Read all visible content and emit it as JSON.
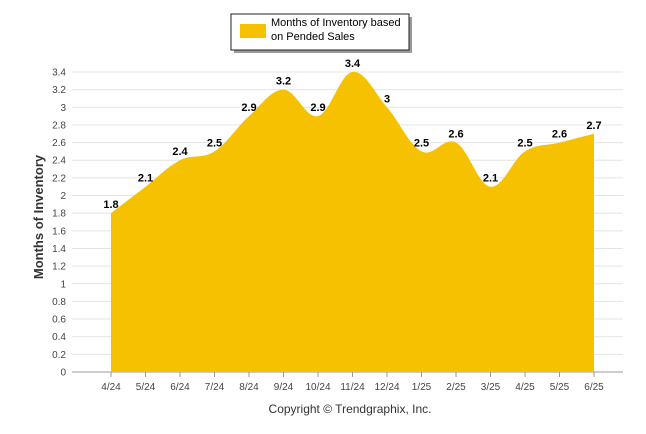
{
  "chart_data": {
    "type": "area",
    "categories": [
      "4/24",
      "5/24",
      "6/24",
      "7/24",
      "8/24",
      "9/24",
      "10/24",
      "11/24",
      "12/24",
      "1/25",
      "2/25",
      "3/25",
      "4/25",
      "5/25",
      "6/25"
    ],
    "series": [
      {
        "name": "Months of Inventory based on Pended Sales",
        "values": [
          1.8,
          2.1,
          2.4,
          2.5,
          2.9,
          3.2,
          2.9,
          3.4,
          3.0,
          2.5,
          2.6,
          2.1,
          2.5,
          2.6,
          2.7
        ],
        "value_labels": [
          "1.8",
          "2.1",
          "2.4",
          "2.5",
          "2.9",
          "3.2",
          "2.9",
          "3.4",
          "3",
          "2.5",
          "2.6",
          "2.1",
          "2.5",
          "2.6",
          "2.7"
        ],
        "color": "#F6C100"
      }
    ],
    "ylabel": "Months of Inventory",
    "ylim": [
      0,
      3.4
    ],
    "yticks": [
      "0",
      "0.2",
      "0.4",
      "0.6",
      "0.8",
      "1",
      "1.2",
      "1.4",
      "1.6",
      "1.8",
      "2",
      "2.2",
      "2.4",
      "2.6",
      "2.8",
      "3",
      "3.2",
      "3.4"
    ],
    "grid": true,
    "legend_position": "top-center",
    "legend_lines": [
      "Months of Inventory based",
      "on Pended Sales"
    ],
    "credit": "Copyright © Trendgraphix, Inc."
  }
}
